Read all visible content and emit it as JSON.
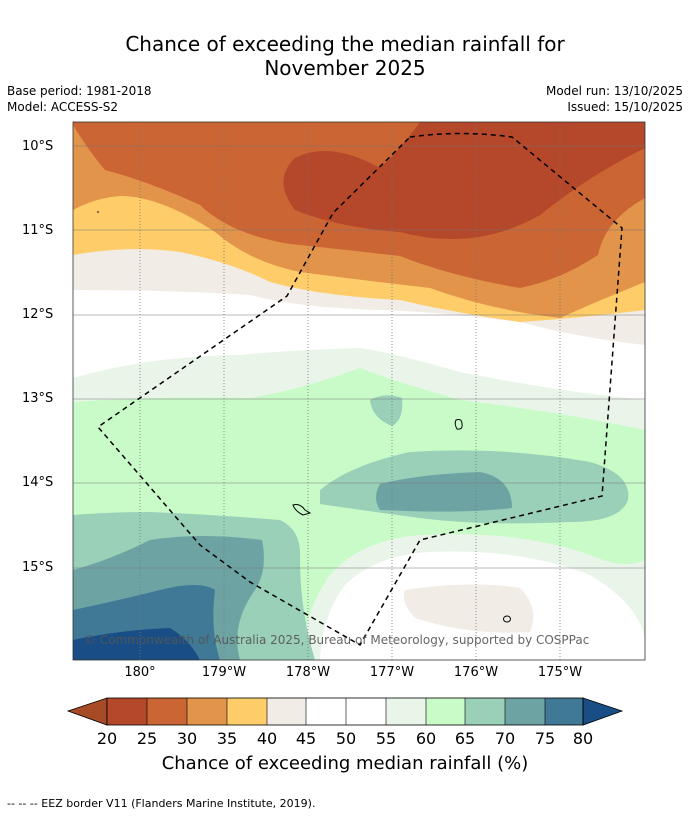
{
  "header": {
    "title_line1": "Chance of exceeding the median rainfall for",
    "title_line2": "November 2025",
    "base_period": "Base period: 1981-2018",
    "model": "Model: ACCESS-S2",
    "model_run": "Model run: 13/10/2025",
    "issued": "Issued: 15/10/2025"
  },
  "map": {
    "lat_labels": [
      "10°S",
      "11°S",
      "12°S",
      "13°S",
      "14°S",
      "15°S"
    ],
    "lon_labels": [
      "180°",
      "179°W",
      "178°W",
      "177°W",
      "176°W",
      "175°W"
    ],
    "copyright": "© Commonwealth of Australia 2025, Bureau of Meteorology, supported by COSPPac",
    "eez_border": "dashed"
  },
  "colorbar": {
    "ticks": [
      "20",
      "25",
      "30",
      "35",
      "40",
      "45",
      "50",
      "55",
      "60",
      "65",
      "70",
      "75",
      "80"
    ],
    "colors": [
      "#a74a26",
      "#b5472a",
      "#cb6533",
      "#e2944b",
      "#fecd69",
      "#f1ede6",
      "#ffffff",
      "#ffffff",
      "#eaf5e9",
      "#c8fbc8",
      "#9acfb8",
      "#6ea3a4",
      "#3f7995",
      "#194d86"
    ],
    "label": "Chance of exceeding median rainfall (%)"
  },
  "footnote": "--  --  -- EEZ border V11 (Flanders Marine Institute, 2019)."
}
